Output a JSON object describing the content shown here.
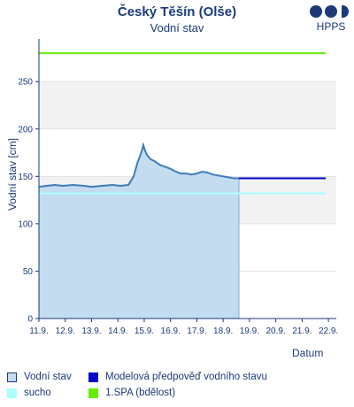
{
  "header": {
    "title": "Český Těšín (Olše)",
    "subtitle": "Vodní stav",
    "logo_text": "HPPS"
  },
  "colors": {
    "observed_fill": "#c3dcf0",
    "observed_line": "#3d7db7",
    "forecast": "#0000cc",
    "sucho": "#aaffff",
    "spa1": "#66ee00",
    "band": "#f2f2f2",
    "axis": "#1a3a7a"
  },
  "chart_data": {
    "type": "line",
    "title": "Český Těšín (Olše)",
    "subtitle": "Vodní stav",
    "xlabel": "Datum",
    "ylabel": "Vodní stav [cm]",
    "ylim": [
      0,
      295
    ],
    "xlim": [
      11.0,
      22.3
    ],
    "x_unit": "day of September",
    "xticks": [
      "11.9.",
      "12.9.",
      "13.9.",
      "14.9.",
      "15.9.",
      "16.9.",
      "17.9.",
      "18.9.",
      "19.9.",
      "20.9.",
      "21.9.",
      "22.9."
    ],
    "yticks": [
      0,
      50,
      100,
      150,
      200,
      250
    ],
    "grid_bands": [
      [
        100,
        150
      ],
      [
        200,
        250
      ]
    ],
    "series": [
      {
        "name": "Vodní stav",
        "kind": "area",
        "x": [
          11.0,
          11.3,
          11.6,
          11.9,
          12.3,
          12.7,
          13.0,
          13.4,
          13.8,
          14.1,
          14.4,
          14.6,
          14.75,
          14.85,
          14.92,
          14.97,
          15.0,
          15.05,
          15.12,
          15.25,
          15.4,
          15.6,
          15.8,
          16.0,
          16.2,
          16.4,
          16.6,
          16.8,
          17.0,
          17.2,
          17.4,
          17.6,
          17.8,
          18.0,
          18.2,
          18.4,
          18.6
        ],
        "y": [
          139,
          140,
          141,
          140,
          141,
          140,
          139,
          140,
          141,
          140,
          141,
          150,
          165,
          172,
          178,
          183,
          180,
          176,
          172,
          168,
          166,
          162,
          160,
          158,
          155,
          153,
          153,
          152,
          153,
          155,
          154,
          152,
          151,
          150,
          149,
          148,
          148
        ]
      },
      {
        "name": "Modelová předpověď vodního stavu",
        "kind": "line",
        "x": [
          18.6,
          21.9
        ],
        "y": [
          148,
          148
        ]
      },
      {
        "name": "sucho",
        "kind": "hline",
        "x": [
          11.0,
          21.9
        ],
        "y": [
          132,
          132
        ]
      },
      {
        "name": "1.SPA (bdělost)",
        "kind": "hline",
        "x": [
          11.0,
          21.9
        ],
        "y": [
          280,
          280
        ]
      }
    ]
  },
  "legend": [
    {
      "label": "Vodní stav",
      "color": "#c3dcf0",
      "border": "#1a3a7a"
    },
    {
      "label": "Modelová předpověď vodního stavu",
      "color": "#0000cc",
      "border": "#0000cc"
    },
    {
      "label": "sucho",
      "color": "#aaffff",
      "border": "#aaffff"
    },
    {
      "label": "1.SPA (bdělost)",
      "color": "#66ee00",
      "border": "#66ee00"
    }
  ]
}
